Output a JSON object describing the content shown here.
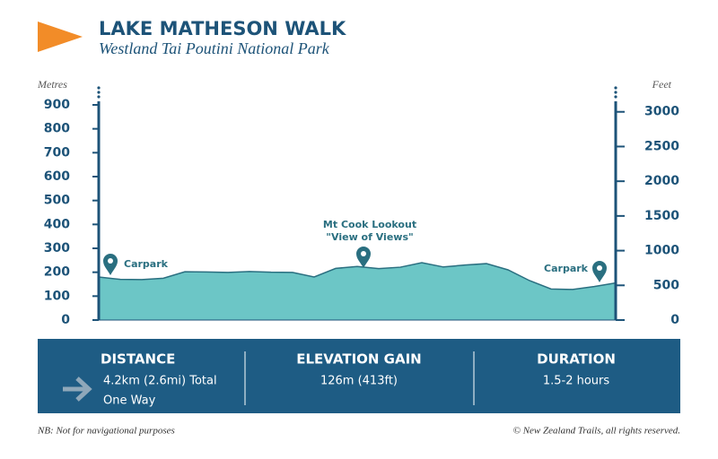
{
  "chart_data": {
    "type": "area",
    "title": "LAKE MATHESON WALK",
    "subtitle": "Westland Tai Poutini National Park",
    "ylabel": "Metres",
    "y2label": "Feet",
    "values": [
      180,
      170,
      169,
      175,
      202,
      201,
      199,
      203,
      200,
      199,
      180,
      216,
      224,
      215,
      221,
      240,
      222,
      230,
      236,
      210,
      165,
      130,
      128,
      140,
      155
    ],
    "color": "#6cc6c6",
    "ylim": [
      0,
      900
    ],
    "yticks": [
      0,
      100,
      200,
      300,
      400,
      500,
      600,
      700,
      800,
      900
    ],
    "y2lim": [
      0,
      3100
    ],
    "y2ticks": [
      0,
      500,
      1000,
      1500,
      2000,
      2500,
      3000
    ],
    "annotations": [
      "Carpark",
      "Mt Cook Lookout",
      "\"View of Views\"",
      "Carpark"
    ]
  },
  "info": [
    {
      "title": "DISTANCE",
      "lines": [
        "4.2km (2.6mi) Total",
        "One Way"
      ]
    },
    {
      "title": "ELEVATION GAIN",
      "lines": [
        "126m (413ft)"
      ]
    },
    {
      "title": "DURATION",
      "lines": [
        "1.5-2 hours"
      ]
    }
  ],
  "footer": {
    "note": "NB: Not for navigational purposes",
    "copyright": "© New Zealand Trails, all rights reserved."
  }
}
